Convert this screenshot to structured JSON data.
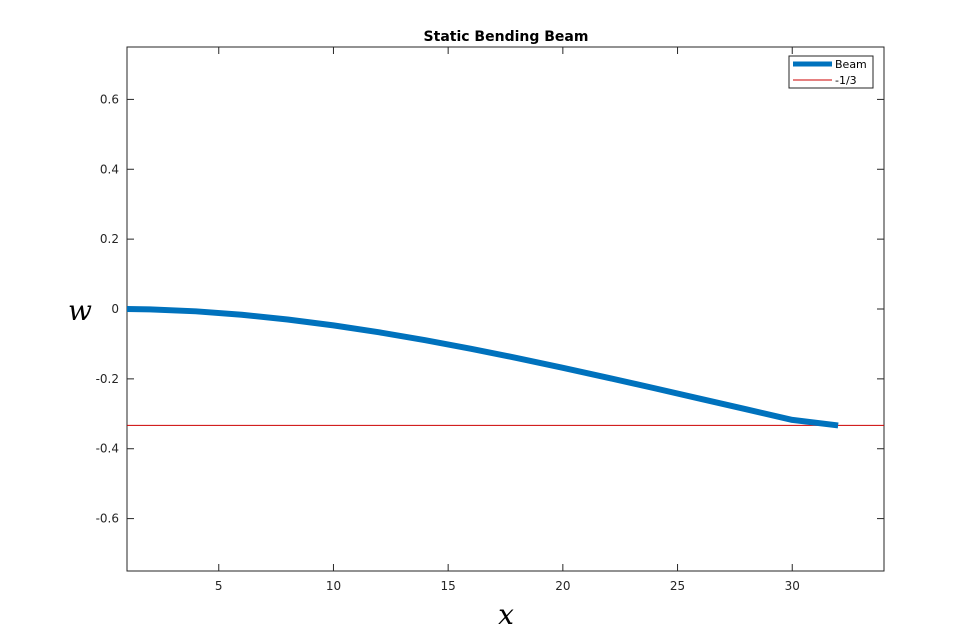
{
  "chart_data": {
    "type": "line",
    "title": "Static Bending Beam",
    "xlabel": "x",
    "ylabel": "w",
    "xlim": [
      1,
      34
    ],
    "ylim": [
      -0.75,
      0.75
    ],
    "xticks": [
      5,
      10,
      15,
      20,
      25,
      30
    ],
    "yticks": [
      0.6,
      0.4,
      0.2,
      0,
      -0.2,
      -0.4,
      -0.6
    ],
    "ytick_labels": [
      "0.6",
      "0.4",
      "0.2",
      "0",
      "-0.2",
      "-0.4",
      "-0.6"
    ],
    "grid": false,
    "legend_position": "top-right",
    "series": [
      {
        "name": "Beam",
        "color": "#0072BD",
        "x": [
          1,
          2,
          4,
          6,
          8,
          10,
          12,
          14,
          16,
          18,
          20,
          22,
          24,
          26,
          28,
          30,
          32
        ],
        "y": [
          0.0,
          -0.0011,
          -0.0066,
          -0.0164,
          -0.03,
          -0.0469,
          -0.0668,
          -0.0893,
          -0.1139,
          -0.1404,
          -0.1683,
          -0.1972,
          -0.2269,
          -0.257,
          -0.2873,
          -0.3175,
          -0.3333
        ]
      },
      {
        "name": "-1/3",
        "color": "#CC0000",
        "type": "hline",
        "y": -0.3333
      }
    ]
  }
}
